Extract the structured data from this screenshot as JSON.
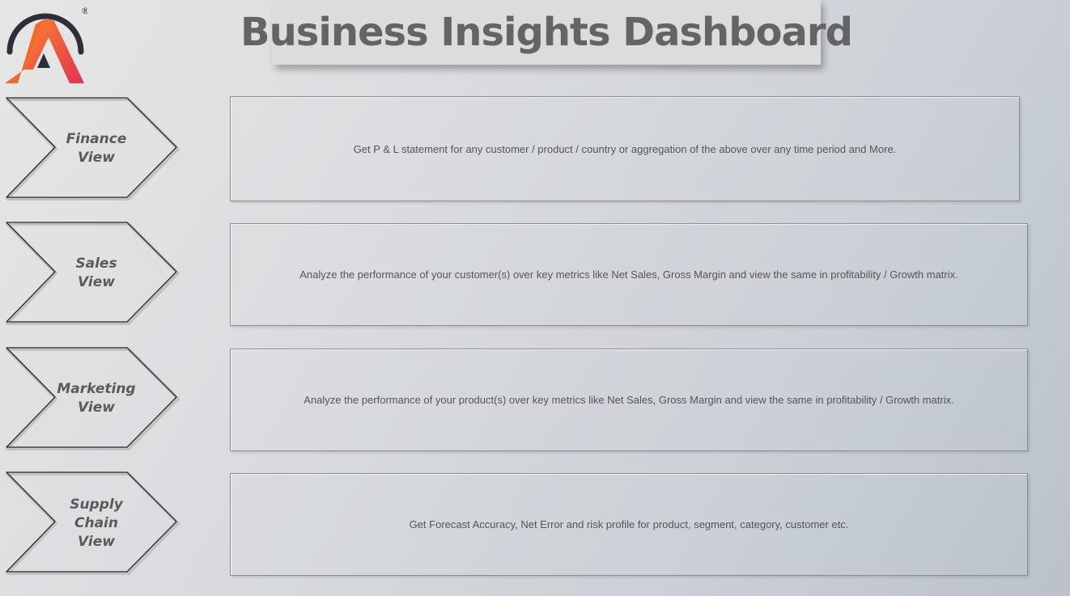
{
  "header": {
    "title": "Business Insights Dashboard"
  },
  "logo": {
    "registered_mark": "®"
  },
  "views": [
    {
      "label": "Finance\nView",
      "description": "Get P & L statement for any customer / product / country or aggregation of the above over any time period and More."
    },
    {
      "label": "Sales\nView",
      "description": "Analyze the performance of your customer(s) over key metrics like Net Sales, Gross Margin and view the same in profitability / Growth matrix."
    },
    {
      "label": "Marketing\nView",
      "description": "Analyze the performance of your product(s) over key metrics like Net Sales, Gross Margin and view the same in profitability / Growth matrix."
    },
    {
      "label": "Supply\nChain\nView",
      "description": "Get Forecast Accuracy, Net Error and risk profile for product, segment, category, customer etc."
    }
  ],
  "colors": {
    "title_text": "#646464",
    "logo_orange": "#f06a2a",
    "logo_red": "#e8304a",
    "logo_ring": "#2b2f38"
  }
}
